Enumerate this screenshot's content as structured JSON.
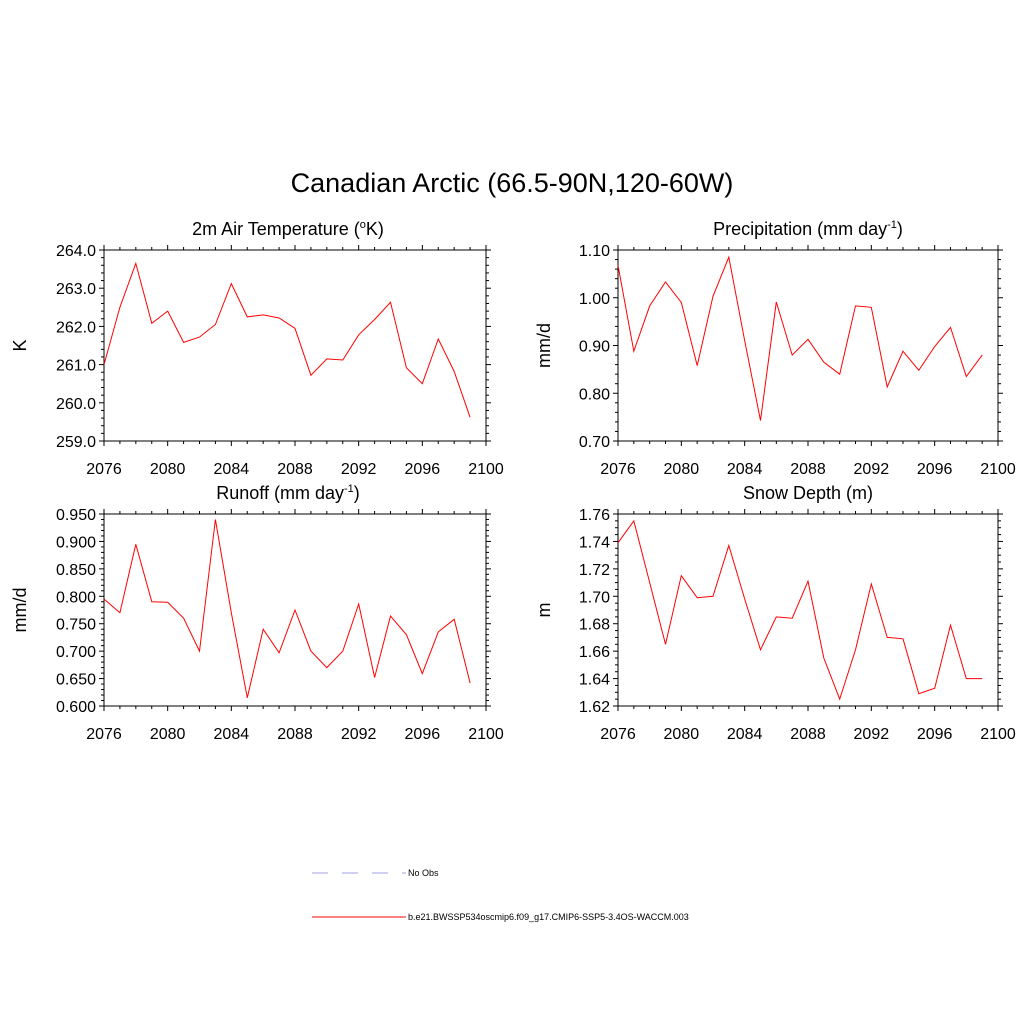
{
  "figure": {
    "title": "Canadian Arctic (66.5-90N,120-60W)"
  },
  "legend": {
    "items": [
      {
        "label": "No Obs",
        "color": "#a0a0e6",
        "dash": true
      },
      {
        "label": "b.e21.BWSSP534oscmip6.f09_g17.CMIP6-SSP5-3.4OS-WACCM.003",
        "color": "#ff0000",
        "dash": false
      }
    ]
  },
  "panels": {
    "temp": {
      "title_main": "2m Air Temperature (",
      "title_sup": "o",
      "title_end": "K)"
    },
    "precip": {
      "title_main": "Precipitation (mm day",
      "title_sup": "-1",
      "title_end": ")"
    },
    "runoff": {
      "title_main": "Runoff (mm day",
      "title_sup": "-1",
      "title_end": ")"
    },
    "snow": {
      "title_main": "Snow Depth (m)",
      "title_sup": "",
      "title_end": ""
    }
  },
  "chart_data": [
    {
      "type": "line",
      "title": "2m Air Temperature (oK)",
      "ylabel": "K",
      "xlim": [
        2076,
        2100
      ],
      "ylim": [
        259.0,
        264.0
      ],
      "xticks": [
        "2076",
        "2080",
        "2084",
        "2088",
        "2092",
        "2096",
        "2100"
      ],
      "yticks": [
        "259.0",
        "260.0",
        "261.0",
        "262.0",
        "263.0",
        "264.0"
      ],
      "x": [
        2076,
        2077,
        2078,
        2079,
        2080,
        2081,
        2082,
        2083,
        2084,
        2085,
        2086,
        2087,
        2088,
        2089,
        2090,
        2091,
        2092,
        2093,
        2094,
        2095,
        2096,
        2097,
        2098,
        2099
      ],
      "series": [
        {
          "name": "b.e21.BWSSP534oscmip6.f09_g17.CMIP6-SSP5-3.4OS-WACCM.003",
          "color": "#ff0000",
          "values": [
            261.0,
            262.5,
            263.65,
            262.08,
            262.4,
            261.58,
            261.72,
            262.05,
            263.12,
            262.25,
            262.3,
            262.22,
            261.95,
            260.72,
            261.15,
            261.12,
            261.78,
            262.18,
            262.63,
            260.92,
            260.5,
            261.67,
            260.82,
            259.62
          ]
        }
      ]
    },
    {
      "type": "line",
      "title": "Precipitation (mm day-1)",
      "ylabel": "mm/d",
      "xlim": [
        2076,
        2100
      ],
      "ylim": [
        0.7,
        1.1
      ],
      "xticks": [
        "2076",
        "2080",
        "2084",
        "2088",
        "2092",
        "2096",
        "2100"
      ],
      "yticks": [
        "0.70",
        "0.80",
        "0.90",
        "1.00",
        "1.10"
      ],
      "x": [
        2076,
        2077,
        2078,
        2079,
        2080,
        2081,
        2082,
        2083,
        2084,
        2085,
        2086,
        2087,
        2088,
        2089,
        2090,
        2091,
        2092,
        2093,
        2094,
        2095,
        2096,
        2097,
        2098,
        2099
      ],
      "series": [
        {
          "name": "b.e21.BWSSP534oscmip6.f09_g17.CMIP6-SSP5-3.4OS-WACCM.003",
          "color": "#ff0000",
          "values": [
            1.068,
            0.888,
            0.983,
            1.033,
            0.99,
            0.858,
            1.003,
            1.085,
            0.91,
            0.743,
            0.991,
            0.88,
            0.913,
            0.865,
            0.84,
            0.983,
            0.98,
            0.813,
            0.888,
            0.848,
            0.898,
            0.938,
            0.835,
            0.88
          ]
        }
      ]
    },
    {
      "type": "line",
      "title": "Runoff (mm day-1)",
      "ylabel": "mm/d",
      "xlim": [
        2076,
        2100
      ],
      "ylim": [
        0.6,
        0.95
      ],
      "xticks": [
        "2076",
        "2080",
        "2084",
        "2088",
        "2092",
        "2096",
        "2100"
      ],
      "yticks": [
        "0.600",
        "0.650",
        "0.700",
        "0.750",
        "0.800",
        "0.850",
        "0.900",
        "0.950"
      ],
      "x": [
        2076,
        2077,
        2078,
        2079,
        2080,
        2081,
        2082,
        2083,
        2084,
        2085,
        2086,
        2087,
        2088,
        2089,
        2090,
        2091,
        2092,
        2093,
        2094,
        2095,
        2096,
        2097,
        2098,
        2099
      ],
      "series": [
        {
          "name": "b.e21.BWSSP534oscmip6.f09_g17.CMIP6-SSP5-3.4OS-WACCM.003",
          "color": "#ff0000",
          "values": [
            0.795,
            0.77,
            0.895,
            0.79,
            0.789,
            0.76,
            0.7,
            0.94,
            0.77,
            0.615,
            0.74,
            0.697,
            0.775,
            0.7,
            0.67,
            0.7,
            0.786,
            0.652,
            0.764,
            0.73,
            0.659,
            0.735,
            0.758,
            0.642
          ]
        }
      ]
    },
    {
      "type": "line",
      "title": "Snow Depth (m)",
      "ylabel": "m",
      "xlim": [
        2076,
        2100
      ],
      "ylim": [
        1.62,
        1.76
      ],
      "xticks": [
        "2076",
        "2080",
        "2084",
        "2088",
        "2092",
        "2096",
        "2100"
      ],
      "yticks": [
        "1.62",
        "1.64",
        "1.66",
        "1.68",
        "1.70",
        "1.72",
        "1.74",
        "1.76"
      ],
      "x": [
        2076,
        2077,
        2078,
        2079,
        2080,
        2081,
        2082,
        2083,
        2084,
        2085,
        2086,
        2087,
        2088,
        2089,
        2090,
        2091,
        2092,
        2093,
        2094,
        2095,
        2096,
        2097,
        2098,
        2099
      ],
      "series": [
        {
          "name": "b.e21.BWSSP534oscmip6.f09_g17.CMIP6-SSP5-3.4OS-WACCM.003",
          "color": "#ff0000",
          "values": [
            1.739,
            1.755,
            1.71,
            1.665,
            1.715,
            1.699,
            1.7,
            1.737,
            1.698,
            1.661,
            1.685,
            1.684,
            1.711,
            1.655,
            1.625,
            1.661,
            1.709,
            1.67,
            1.669,
            1.629,
            1.633,
            1.679,
            1.64,
            1.64
          ]
        }
      ]
    }
  ]
}
